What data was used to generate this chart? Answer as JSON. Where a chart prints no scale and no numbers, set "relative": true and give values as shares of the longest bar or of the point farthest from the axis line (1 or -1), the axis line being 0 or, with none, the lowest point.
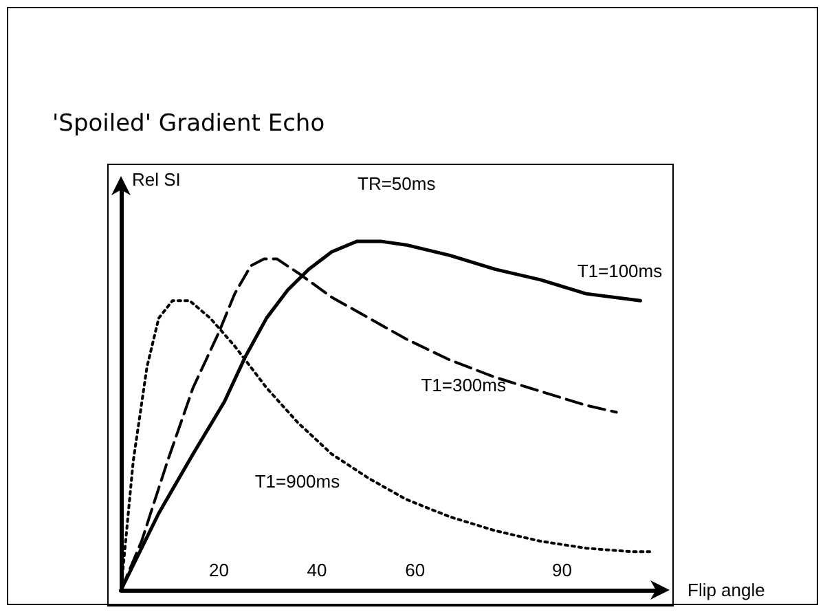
{
  "chart_data": {
    "type": "line",
    "title": "'Spoiled' Gradient Echo",
    "xlabel": "Flip angle",
    "ylabel": "Rel SI",
    "annotations": [
      "TR=50ms"
    ],
    "relative": true,
    "xlim": [
      0,
      110
    ],
    "xticks": [
      20,
      40,
      60,
      90
    ],
    "legend": false,
    "grid": false,
    "marker": "none",
    "series": [
      {
        "name": "T1=100ms",
        "color": "#000000",
        "line_style": "solid",
        "x": [
          0,
          7.7,
          14.7,
          21.1,
          25.4,
          29.7,
          34,
          38.3,
          43,
          48.1,
          53.2,
          58.2,
          67.1,
          76.4,
          85.6,
          94.9,
          106
        ],
        "values": [
          0,
          0.22,
          0.39,
          0.54,
          0.67,
          0.78,
          0.86,
          0.92,
          0.97,
          1.0,
          1.0,
          0.99,
          0.96,
          0.92,
          0.89,
          0.85,
          0.83
        ]
      },
      {
        "name": "T1=300ms",
        "color": "#000000",
        "line_style": "dashed",
        "x": [
          0,
          4.2,
          9.5,
          14.7,
          20,
          23.2,
          26.5,
          29.2,
          31.8,
          36.1,
          43,
          50.6,
          58.2,
          67.1,
          76.4,
          85.6,
          94.9,
          101.1
        ],
        "values": [
          0,
          0.14,
          0.37,
          0.58,
          0.74,
          0.85,
          0.93,
          0.95,
          0.95,
          0.91,
          0.84,
          0.78,
          0.72,
          0.66,
          0.61,
          0.57,
          0.53,
          0.51
        ]
      },
      {
        "name": "T1=900ms",
        "color": "#000000",
        "line_style": "dotted",
        "x": [
          0,
          2.5,
          5.3,
          7.7,
          10.5,
          14,
          18.2,
          23.2,
          29.7,
          36.1,
          43,
          50.6,
          58.2,
          67.1,
          76.4,
          85.6,
          94.9,
          104.2,
          107.9
        ],
        "values": [
          0,
          0.37,
          0.64,
          0.78,
          0.83,
          0.83,
          0.78,
          0.7,
          0.58,
          0.48,
          0.39,
          0.32,
          0.26,
          0.21,
          0.17,
          0.14,
          0.12,
          0.11,
          0.11
        ]
      }
    ]
  }
}
